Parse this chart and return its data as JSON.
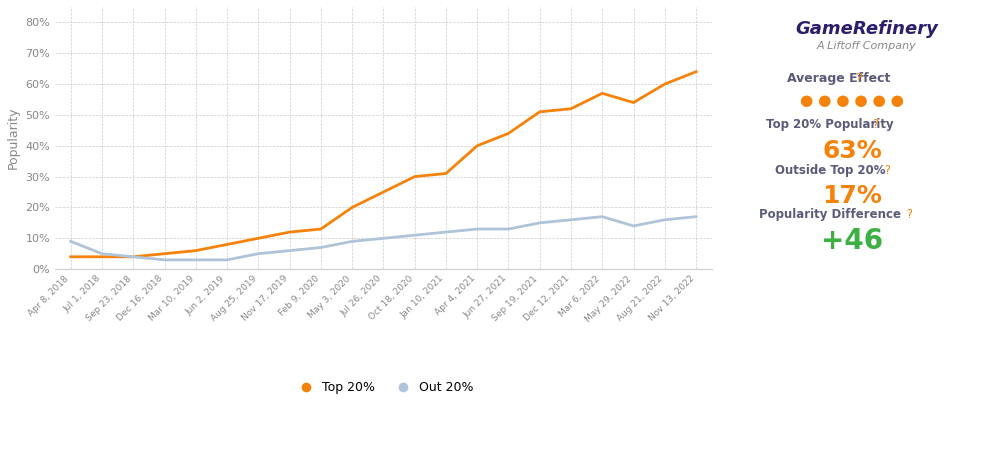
{
  "x_labels": [
    "Apr 8, 2018",
    "Jul 1, 2018",
    "Sep 23, 2018",
    "Dec 16, 2018",
    "Mar 10, 2019",
    "Jun 2, 2019",
    "Aug 25, 2019",
    "Nov 17, 2019",
    "Feb 9, 2020",
    "May 3, 2020",
    "Jul 26, 2020",
    "Oct 18, 2020",
    "Jan 10, 2021",
    "Apr 4, 2021",
    "Jun 27, 2021",
    "Sep 19, 2021",
    "Dec 12, 2021",
    "Mar 6, 2022",
    "May 29, 2022",
    "Aug 21, 2022",
    "Nov 13, 2022"
  ],
  "top20_values": [
    4,
    4,
    4,
    5,
    6,
    8,
    10,
    12,
    13,
    20,
    25,
    30,
    31,
    40,
    44,
    51,
    52,
    57,
    54,
    60,
    64
  ],
  "out20_values": [
    9,
    5,
    4,
    3,
    3,
    3,
    5,
    6,
    7,
    9,
    10,
    11,
    12,
    13,
    13,
    15,
    16,
    17,
    14,
    16,
    17
  ],
  "top20_color": "#f5820a",
  "out20_color": "#b0c4d8",
  "ylabel": "Popularity",
  "yticks": [
    0,
    10,
    20,
    30,
    40,
    50,
    60,
    70,
    80
  ],
  "ytick_labels": [
    "0%",
    "10%",
    "20%",
    "30%",
    "40%",
    "50%",
    "60%",
    "70%",
    "80%"
  ],
  "ylim": [
    0,
    85
  ],
  "grid_color": "#cccccc",
  "bg_color": "#ffffff",
  "legend_top20": "Top 20%",
  "legend_out20": "Out 20%",
  "panel_title_avg": "Average Effect",
  "panel_q_color": "#f5820a",
  "panel_top_label": "Top 20% Popularity",
  "panel_top_value": "63%",
  "panel_out_label": "Outside Top 20%",
  "panel_out_value": "17%",
  "panel_diff_label": "Popularity Difference",
  "panel_diff_value": "+46",
  "panel_value_color": "#f5820a",
  "panel_diff_color": "#3cb043",
  "panel_label_color": "#5a5a7a",
  "panel_dots_color": "#f5820a",
  "panel_num_dots": 6,
  "gamerefinery_color": "#2d1e6b",
  "liftoff_color": "#555555",
  "line_width": 2.0
}
